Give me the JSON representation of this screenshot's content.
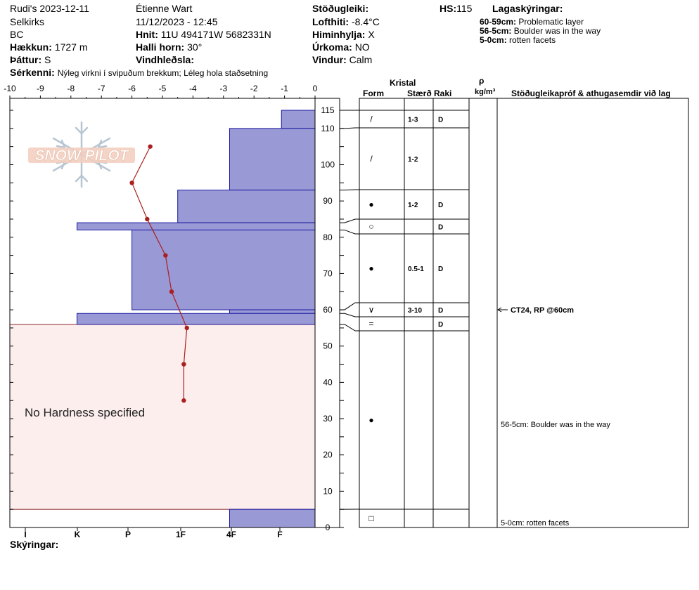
{
  "header": {
    "title": "Rudi's 2023-12-11",
    "range": "Selkirks",
    "region": "BC",
    "elevation_label": "Hækkun:",
    "elevation_value": "1727 m",
    "aspect_label": "Þáttur:",
    "aspect_value": "S",
    "observer": "Étienne Wart",
    "datetime": "11/12/2023 - 12:45",
    "coords_label": "Hnit:",
    "coords_value": "11U 494171W 5682331N",
    "slope_label": "Halli horn:",
    "slope_value": "30°",
    "wind_loading_label": "Vindhleðsla:",
    "wind_loading_value": "",
    "stability_label": "Stöðugleiki:",
    "stability_value": "",
    "airtemp_label": "Lofthiti:",
    "airtemp_value": "-8.4°C",
    "sky_label": "Himinhylja:",
    "sky_value": "X",
    "precip_label": "Úrkoma:",
    "precip_value": "NO",
    "wind_label": "Vindur:",
    "wind_value": "Calm",
    "hs_label": "HS:",
    "hs_value": "115",
    "notes_label": "Sérkenni:",
    "notes_value": "Nýleg virkni í svipuðum brekkum; Léleg hola staðsetning",
    "legend_label": "Skýringar:"
  },
  "layer_notes": {
    "title": "Lagaskýringar:",
    "items": [
      {
        "range": "60-59cm:",
        "text": "Problematic layer"
      },
      {
        "range": "56-5cm:",
        "text": "Boulder was in the way"
      },
      {
        "range": "5-0cm:",
        "text": "rotten facets"
      }
    ]
  },
  "table_headers": {
    "kristal": "Kristal",
    "form": "Form",
    "size": "Stærð",
    "moisture": "Raki",
    "rho": "ρ",
    "density_unit": "kg/m³",
    "comments": "Stöðugleikapróf & athugasemdir við lag"
  },
  "logo": {
    "text": "SNOW PILOT"
  },
  "colors": {
    "hardness_fill": "#9999d6",
    "hardness_stroke": "#1a1aa0",
    "temp_line": "#aa1f1f",
    "no_hardness_fill": "#fdeeee",
    "no_hardness_stroke": "#8b2a2a"
  },
  "chart_data": {
    "type": "snow_profile",
    "temp_axis": {
      "ticks": [
        "-10",
        "-9",
        "-8",
        "-7",
        "-6",
        "-5",
        "-4",
        "-3",
        "-2",
        "-1",
        "0"
      ],
      "range": [
        -10,
        0
      ]
    },
    "hardness_axis": {
      "ticks": [
        "I",
        "K",
        "P",
        "1F",
        "4F",
        "F"
      ]
    },
    "height_axis": {
      "ticks": [
        "115",
        "110",
        "100",
        "90",
        "80",
        "70",
        "60",
        "50",
        "40",
        "30",
        "20",
        "10",
        "0"
      ],
      "range": [
        0,
        115
      ]
    },
    "no_hardness_text": "No Hardness specified",
    "no_hardness_range": [
      5,
      56
    ],
    "hardness_layers": [
      {
        "top": 115,
        "bottom": 110,
        "temp_extent": -1.1
      },
      {
        "top": 110,
        "bottom": 93,
        "temp_extent": -2.8
      },
      {
        "top": 93,
        "bottom": 84,
        "temp_extent": -4.5
      },
      {
        "top": 84,
        "bottom": 82,
        "temp_extent": -7.8
      },
      {
        "top": 82,
        "bottom": 60,
        "temp_extent": -6.0
      },
      {
        "top": 60,
        "bottom": 59,
        "temp_extent": -2.8
      },
      {
        "top": 59,
        "bottom": 56,
        "temp_extent": -7.8
      },
      {
        "top": 5,
        "bottom": 0,
        "temp_extent": -2.8
      }
    ],
    "temperature_profile": [
      {
        "height": 105,
        "temp": -5.4
      },
      {
        "height": 95,
        "temp": -6.0
      },
      {
        "height": 85,
        "temp": -5.5
      },
      {
        "height": 75,
        "temp": -4.9
      },
      {
        "height": 65,
        "temp": -4.7
      },
      {
        "height": 55,
        "temp": -4.2
      },
      {
        "height": 45,
        "temp": -4.3
      },
      {
        "height": 35,
        "temp": -4.3
      }
    ],
    "layers": [
      {
        "top": 115,
        "bottom": 110,
        "form": "/",
        "size": "1-3",
        "moisture": "D",
        "comment": ""
      },
      {
        "top": 110,
        "bottom": 93,
        "form": "/",
        "size": "1-2",
        "moisture": "",
        "comment": ""
      },
      {
        "top": 93,
        "bottom": 84,
        "form": "●",
        "size": "1-2",
        "moisture": "D",
        "comment": ""
      },
      {
        "top": 84,
        "bottom": 82,
        "form": "○",
        "size": "",
        "moisture": "D",
        "comment": ""
      },
      {
        "top": 82,
        "bottom": 60,
        "form": "●",
        "size": "0.5-1",
        "moisture": "D",
        "comment": ""
      },
      {
        "top": 60,
        "bottom": 59,
        "form": "∨",
        "size": "3-10",
        "moisture": "D",
        "comment": "CT24, RP @60cm"
      },
      {
        "top": 59,
        "bottom": 56,
        "form": "=",
        "size": "",
        "moisture": "D",
        "comment": ""
      },
      {
        "top": 56,
        "bottom": 5,
        "form": "●",
        "size": "",
        "moisture": "",
        "comment": "56-5cm:  Boulder was in the way"
      },
      {
        "top": 5,
        "bottom": 0,
        "form": "□",
        "size": "",
        "moisture": "",
        "comment": "5-0cm:  rotten facets"
      }
    ]
  }
}
